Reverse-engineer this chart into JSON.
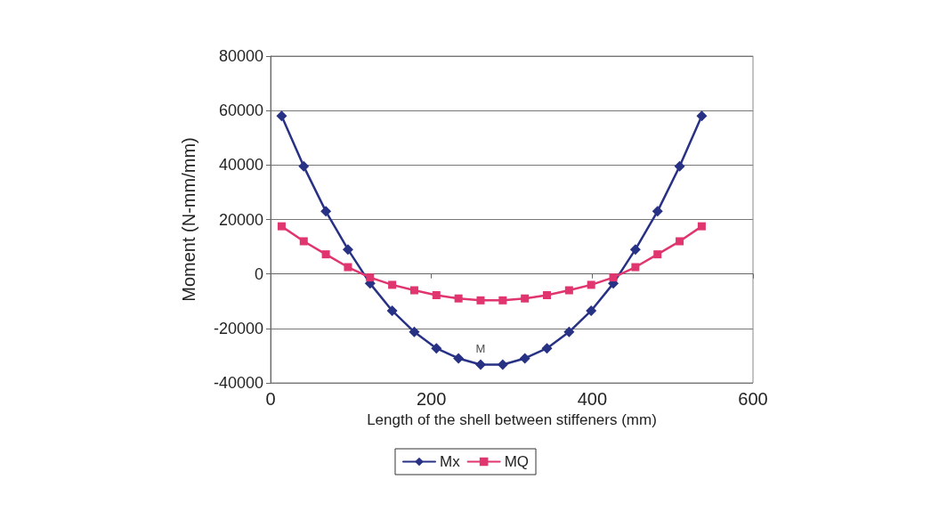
{
  "chart_data": {
    "type": "line",
    "xlabel": "Length of the shell between stiffeners (mm)",
    "ylabel": "Moment (N-mm/mm)",
    "x": [
      13.75,
      41.25,
      68.75,
      96.25,
      123.75,
      151.25,
      178.75,
      206.25,
      233.75,
      261.25,
      288.75,
      316.25,
      343.75,
      371.25,
      398.75,
      426.25,
      453.75,
      481.25,
      508.75,
      536.25
    ],
    "series": [
      {
        "name": "Mx",
        "color": "#283285",
        "marker": "diamond",
        "values": [
          58000,
          39500,
          23000,
          9000,
          -3500,
          -13500,
          -21300,
          -27300,
          -31000,
          -33300,
          -33300,
          -31000,
          -27300,
          -21300,
          -13500,
          -3500,
          9000,
          23000,
          39500,
          58000
        ]
      },
      {
        "name": "MQ",
        "color": "#e0356f",
        "marker": "square",
        "values": [
          17500,
          12000,
          7200,
          2500,
          -1300,
          -4000,
          -6000,
          -7800,
          -9000,
          -9700,
          -9700,
          -9000,
          -7800,
          -6000,
          -4000,
          -1300,
          2500,
          7200,
          12000,
          17500
        ]
      }
    ],
    "xlim": [
      0,
      600
    ],
    "xticks": [
      0,
      200,
      400,
      600
    ],
    "ylim": [
      -40000,
      80000
    ],
    "yticks": [
      -40000,
      -20000,
      0,
      20000,
      40000,
      60000,
      80000
    ],
    "grid": "y",
    "legend": "bottom",
    "line_style": "solid",
    "annotations": [
      {
        "text": "M",
        "x": 261.25,
        "y": -33300
      }
    ]
  }
}
